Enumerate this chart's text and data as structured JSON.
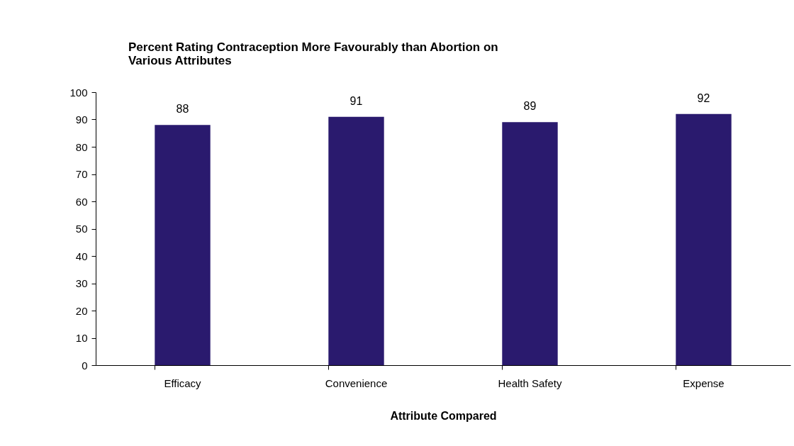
{
  "chart_data": {
    "type": "bar",
    "title": "Percent Rating Contraception More Favourably than Abortion on\nVarious Attributes",
    "xlabel": "Attribute Compared",
    "categories": [
      "Efficacy",
      "Convenience",
      "Health Safety",
      "Expense"
    ],
    "values": [
      88,
      91,
      89,
      92
    ],
    "color": "#2a1a6e",
    "ylim": [
      0,
      100
    ],
    "yticks": [
      0,
      10,
      20,
      30,
      40,
      50,
      60,
      70,
      80,
      90,
      100
    ],
    "data_labels": true,
    "grid": false
  }
}
